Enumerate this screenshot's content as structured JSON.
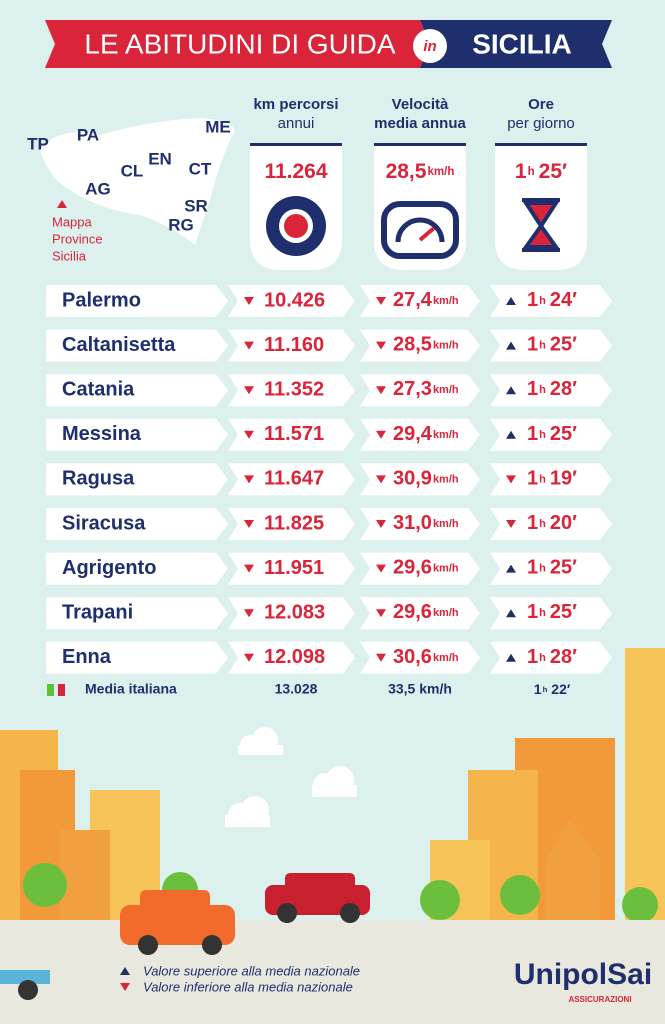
{
  "header": {
    "title_left": "LE ABITUDINI DI GUIDA",
    "connector": "in",
    "title_right": "SICILIA"
  },
  "map": {
    "provinces": [
      "TP",
      "PA",
      "ME",
      "CL",
      "EN",
      "CT",
      "AG",
      "SR",
      "RG"
    ],
    "legend": [
      "Mappa",
      "Province",
      "Sicilia"
    ]
  },
  "columns": [
    {
      "heading": [
        "km percorsi",
        "annui"
      ],
      "total": {
        "value": "11.264"
      }
    },
    {
      "heading": [
        "Velocità",
        "media annua"
      ],
      "total": {
        "value": "28,5",
        "unit": "km/h"
      }
    },
    {
      "heading": [
        "Ore",
        "per giorno"
      ],
      "total": {
        "h": "1",
        "unit": "h",
        "m": "25′"
      }
    }
  ],
  "rows": [
    {
      "name": "Palermo",
      "km": {
        "value": "10.426",
        "trend": "down"
      },
      "speed": {
        "value": "27,4",
        "unit": "km/h",
        "trend": "down"
      },
      "time": {
        "h": "1",
        "unit": "h",
        "m": "24′",
        "trend": "up"
      }
    },
    {
      "name": "Caltanisetta",
      "km": {
        "value": "11.160",
        "trend": "down"
      },
      "speed": {
        "value": "28,5",
        "unit": "km/h",
        "trend": "down"
      },
      "time": {
        "h": "1",
        "unit": "h",
        "m": "25′",
        "trend": "up"
      }
    },
    {
      "name": "Catania",
      "km": {
        "value": "11.352",
        "trend": "down"
      },
      "speed": {
        "value": "27,3",
        "unit": "km/h",
        "trend": "down"
      },
      "time": {
        "h": "1",
        "unit": "h",
        "m": "28′",
        "trend": "up"
      }
    },
    {
      "name": "Messina",
      "km": {
        "value": "11.571",
        "trend": "down"
      },
      "speed": {
        "value": "29,4",
        "unit": "km/h",
        "trend": "down"
      },
      "time": {
        "h": "1",
        "unit": "h",
        "m": "25′",
        "trend": "up"
      }
    },
    {
      "name": "Ragusa",
      "km": {
        "value": "11.647",
        "trend": "down"
      },
      "speed": {
        "value": "30,9",
        "unit": "km/h",
        "trend": "down"
      },
      "time": {
        "h": "1",
        "unit": "h",
        "m": "19′",
        "trend": "down"
      }
    },
    {
      "name": "Siracusa",
      "km": {
        "value": "11.825",
        "trend": "down"
      },
      "speed": {
        "value": "31,0",
        "unit": "km/h",
        "trend": "down"
      },
      "time": {
        "h": "1",
        "unit": "h",
        "m": "20′",
        "trend": "down"
      }
    },
    {
      "name": "Agrigento",
      "km": {
        "value": "11.951",
        "trend": "down"
      },
      "speed": {
        "value": "29,6",
        "unit": "km/h",
        "trend": "down"
      },
      "time": {
        "h": "1",
        "unit": "h",
        "m": "25′",
        "trend": "up"
      }
    },
    {
      "name": "Trapani",
      "km": {
        "value": "12.083",
        "trend": "down"
      },
      "speed": {
        "value": "29,6",
        "unit": "km/h",
        "trend": "down"
      },
      "time": {
        "h": "1",
        "unit": "h",
        "m": "25′",
        "trend": "up"
      }
    },
    {
      "name": "Enna",
      "km": {
        "value": "12.098",
        "trend": "down"
      },
      "speed": {
        "value": "30,6",
        "unit": "km/h",
        "trend": "down"
      },
      "time": {
        "h": "1",
        "unit": "h",
        "m": "28′",
        "trend": "up"
      }
    }
  ],
  "average": {
    "label": "Media italiana",
    "km": "13.028",
    "speed": "33,5 km/h",
    "time": {
      "h": "1",
      "unit": "h",
      "m": "22′"
    }
  },
  "legend": {
    "up": "Valore superiore alla media nazionale",
    "down": "Valore inferiore alla media nazionale"
  },
  "brand": {
    "name": "UnipolSai",
    "sub": "ASSICURAZIONI"
  }
}
